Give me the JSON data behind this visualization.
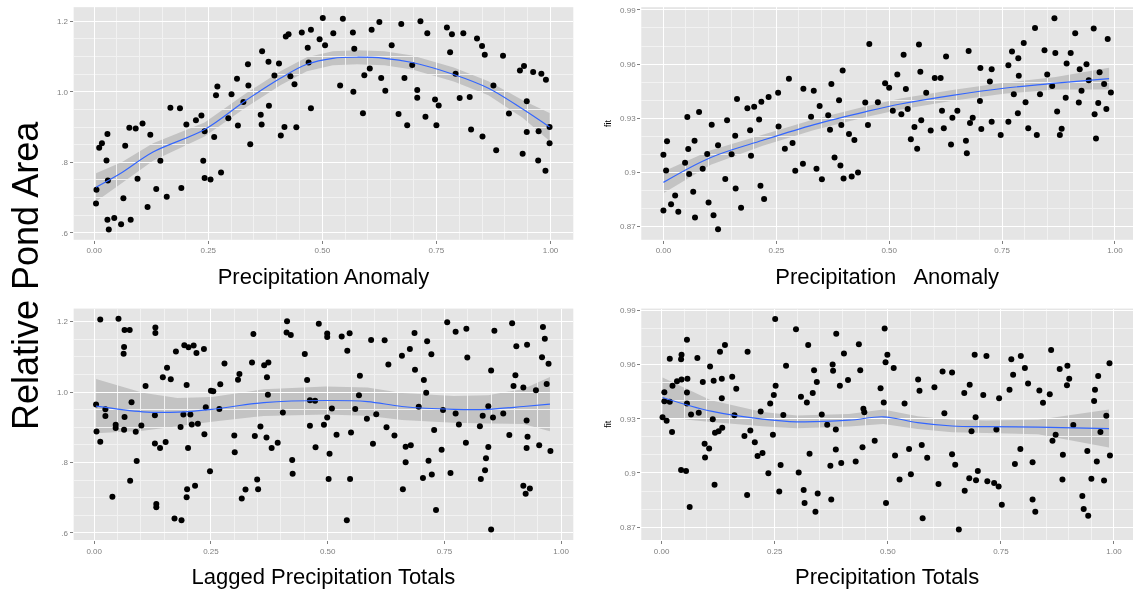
{
  "chart_data": [
    {
      "type": "scatter",
      "xlabel": "Precipitation Anomaly",
      "ylabel": "Relative Pond Area",
      "grid": true,
      "xlim": [
        -0.045,
        1.05
      ],
      "ylim": [
        0.58,
        1.24
      ],
      "xticks": [
        {
          "value": 0,
          "label": "0.00"
        },
        {
          "value": 0.25,
          "label": "0.25"
        },
        {
          "value": 0.5,
          "label": "0.50"
        },
        {
          "value": 0.75,
          "label": "0.75"
        },
        {
          "value": 1,
          "label": "1.00"
        }
      ],
      "yticks": [
        {
          "value": 0.6,
          "label": ".6"
        },
        {
          "value": 0.8,
          "label": ".8"
        },
        {
          "value": 1.0,
          "label": "1.0"
        },
        {
          "value": 1.2,
          "label": "1.2"
        }
      ],
      "series": [
        {
          "type": "scatter",
          "marker": "circle",
          "color": "#000000",
          "x": [
            0.004,
            0.005,
            0.011,
            0.017,
            0.029,
            0.027,
            0.029,
            0.032,
            0.03,
            0.044,
            0.059,
            0.064,
            0.068,
            0.077,
            0.091,
            0.106,
            0.095,
            0.08,
            0.117,
            0.123,
            0.136,
            0.145,
            0.167,
            0.159,
            0.188,
            0.191,
            0.202,
            0.223,
            0.235,
            0.239,
            0.242,
            0.242,
            0.255,
            0.263,
            0.267,
            0.27,
            0.278,
            0.294,
            0.301,
            0.313,
            0.315,
            0.327,
            0.337,
            0.338,
            0.342,
            0.365,
            0.367,
            0.368,
            0.382,
            0.383,
            0.395,
            0.405,
            0.409,
            0.417,
            0.42,
            0.426,
            0.43,
            0.439,
            0.443,
            0.455,
            0.468,
            0.47,
            0.475,
            0.475,
            0.494,
            0.501,
            0.506,
            0.524,
            0.539,
            0.545,
            0.567,
            0.568,
            0.57,
            0.589,
            0.592,
            0.604,
            0.608,
            0.625,
            0.629,
            0.638,
            0.652,
            0.667,
            0.673,
            0.68,
            0.686,
            0.697,
            0.708,
            0.708,
            0.715,
            0.726,
            0.73,
            0.747,
            0.75,
            0.755,
            0.773,
            0.78,
            0.784,
            0.792,
            0.801,
            0.809,
            0.823,
            0.826,
            0.839,
            0.85,
            0.851,
            0.856,
            0.875,
            0.881,
            0.896,
            0.909,
            0.933,
            0.942,
            0.939,
            0.948,
            0.948,
            0.962,
            0.973,
            0.974,
            0.98,
            0.989,
            0.99,
            0.998,
            0.998
          ],
          "values": [
            0.683,
            0.722,
            0.841,
            0.854,
            0.88,
            0.805,
            0.637,
            0.609,
            0.748,
            0.642,
            0.624,
            0.698,
            0.847,
            0.898,
            0.896,
            0.91,
            0.753,
            0.637,
            0.673,
            0.878,
            0.724,
            0.804,
            0.955,
            0.702,
            0.953,
            0.727,
            0.907,
            0.919,
            0.933,
            0.804,
            0.888,
            0.755,
            0.751,
            0.872,
            0.99,
            1.015,
            0.771,
            0.925,
            0.993,
            1.037,
            0.904,
            0.971,
            1.078,
            1.018,
            0.851,
            0.935,
            0.907,
            1.115,
            1.085,
            0.96,
            1.046,
            1.08,
            0.876,
            0.9,
            1.157,
            1.163,
            1.044,
            1.021,
            0.899,
            1.168,
            1.125,
            1.083,
            0.953,
            1.176,
            1.149,
            1.209,
            1.132,
            1.166,
            1.018,
            1.207,
            1.168,
            1.0,
            1.122,
            0.939,
            1.047,
            1.066,
            1.176,
            1.198,
            1.039,
            1.003,
            1.132,
            0.937,
            1.192,
            1.039,
            0.905,
            1.076,
            1.005,
            0.983,
            1.2,
            0.929,
            1.166,
            0.978,
            0.905,
            0.961,
            1.182,
            1.112,
            1.163,
            1.051,
            0.982,
            1.166,
            0.985,
            0.893,
            1.151,
            1.13,
            0.873,
            1.105,
            1.018,
            0.834,
            1.102,
            0.938,
            1.06,
            1.073,
            0.824,
            0.973,
            0.886,
            1.056,
            0.805,
            0.888,
            1.051,
            0.776,
            1.034,
            0.9,
            0.854
          ]
        },
        {
          "type": "line",
          "color": "#3366ff",
          "x": [
            0.004,
            0.061,
            0.129,
            0.242,
            0.333,
            0.409,
            0.466,
            0.523,
            0.576,
            0.636,
            0.697,
            0.788,
            0.864,
            0.939,
            0.998
          ],
          "values": [
            0.729,
            0.771,
            0.829,
            0.893,
            0.976,
            1.039,
            1.078,
            1.095,
            1.098,
            1.095,
            1.083,
            1.049,
            1.01,
            0.951,
            0.9
          ],
          "lower": [
            0.689,
            0.741,
            0.804,
            0.873,
            0.956,
            1.019,
            1.058,
            1.075,
            1.078,
            1.075,
            1.063,
            1.029,
            0.99,
            0.926,
            0.86
          ],
          "upper": [
            0.769,
            0.801,
            0.854,
            0.913,
            0.996,
            1.059,
            1.098,
            1.115,
            1.118,
            1.115,
            1.103,
            1.069,
            1.03,
            0.976,
            0.94
          ]
        }
      ]
    },
    {
      "type": "scatter",
      "xlabel": "Precipitation   Anomaly",
      "ylabel": "fit",
      "grid": true,
      "xlim": [
        -0.049,
        1.04
      ],
      "ylim": [
        0.8627,
        0.9915
      ],
      "xticks": [
        {
          "value": 0,
          "label": "0.00"
        },
        {
          "value": 0.25,
          "label": "0.25"
        },
        {
          "value": 0.5,
          "label": "0.50"
        },
        {
          "value": 0.75,
          "label": "0.75"
        },
        {
          "value": 1,
          "label": "1.00"
        }
      ],
      "yticks": [
        0.87,
        0.9,
        0.93,
        0.96,
        0.99
      ],
      "series": [
        {
          "type": "scatter",
          "marker": "circle",
          "color": "#000000",
          "x": [
            0,
            0,
            0.008,
            0.006,
            0.017,
            0.026,
            0.033,
            0.048,
            0.053,
            0.055,
            0.057,
            0.066,
            0.07,
            0.069,
            0.079,
            0.087,
            0.097,
            0.1,
            0.107,
            0.111,
            0.121,
            0.121,
            0.137,
            0.141,
            0.151,
            0.159,
            0.163,
            0.16,
            0.172,
            0.186,
            0.192,
            0.201,
            0.194,
            0.212,
            0.215,
            0.217,
            0.223,
            0.233,
            0.254,
            0.255,
            0.269,
            0.278,
            0.286,
            0.292,
            0.309,
            0.31,
            0.327,
            0.333,
            0.339,
            0.346,
            0.351,
            0.365,
            0.369,
            0.372,
            0.379,
            0.389,
            0.392,
            0.394,
            0.397,
            0.399,
            0.411,
            0.417,
            0.423,
            0.431,
            0.447,
            0.456,
            0.453,
            0.475,
            0.491,
            0.5,
            0.508,
            0.518,
            0.527,
            0.532,
            0.537,
            0.541,
            0.548,
            0.556,
            0.562,
            0.566,
            0.569,
            0.571,
            0.582,
            0.592,
            0.601,
            0.614,
            0.617,
            0.621,
            0.626,
            0.637,
            0.64,
            0.651,
            0.67,
            0.672,
            0.676,
            0.679,
            0.685,
            0.701,
            0.702,
            0.704,
            0.723,
            0.727,
            0.727,
            0.747,
            0.764,
            0.764,
            0.772,
            0.776,
            0.785,
            0.786,
            0.787,
            0.798,
            0.802,
            0.808,
            0.823,
            0.827,
            0.834,
            0.844,
            0.85,
            0.861,
            0.866,
            0.868,
            0.872,
            0.878,
            0.882,
            0.891,
            0.893,
            0.902,
            0.912,
            0.922,
            0.92,
            0.926,
            0.937,
            0.942,
            0.953,
            0.955,
            0.958,
            0.963,
            0.966,
            0.976,
            0.981,
            0.984,
            0.991
          ],
          "values": [
            0.8789,
            0.9098,
            0.9173,
            0.9011,
            0.8824,
            0.8872,
            0.8782,
            0.9054,
            0.9307,
            0.913,
            0.8991,
            0.8893,
            0.875,
            0.9175,
            0.9334,
            0.9021,
            0.9102,
            0.8834,
            0.9264,
            0.8763,
            0.8685,
            0.915,
            0.8964,
            0.9289,
            0.91,
            0.9203,
            0.9406,
            0.8911,
            0.8805,
            0.9356,
            0.9234,
            0.9364,
            0.9092,
            0.9293,
            0.8926,
            0.9391,
            0.8853,
            0.9418,
            0.9441,
            0.9255,
            0.9131,
            0.9519,
            0.9163,
            0.901,
            0.9048,
            0.9464,
            0.9309,
            0.9452,
            0.902,
            0.9368,
            0.8962,
            0.9316,
            0.9236,
            0.9489,
            0.9083,
            0.9399,
            0.9039,
            0.9262,
            0.9565,
            0.8967,
            0.9213,
            0.8978,
            0.918,
            0.9,
            0.9387,
            0.9711,
            0.9262,
            0.9389,
            0.9494,
            0.9469,
            0.9341,
            0.9542,
            0.9322,
            0.9651,
            0.9462,
            0.9351,
            0.9184,
            0.9251,
            0.9131,
            0.9709,
            0.9557,
            0.9289,
            0.9441,
            0.9232,
            0.9523,
            0.9523,
            0.9341,
            0.9245,
            0.9642,
            0.9154,
            0.9303,
            0.9341,
            0.9175,
            0.9106,
            0.9672,
            0.9274,
            0.9303,
            0.9395,
            0.9578,
            0.924,
            0.9504,
            0.9571,
            0.928,
            0.9207,
            0.9594,
            0.928,
            0.967,
            0.9433,
            0.9328,
            0.9632,
            0.9536,
            0.9717,
            0.9389,
            0.9245,
            0.98,
            0.9207,
            0.9433,
            0.9676,
            0.9542,
            0.9479,
            0.9854,
            0.9661,
            0.9337,
            0.9207,
            0.9242,
            0.9414,
            0.9603,
            0.9661,
            0.977,
            0.9571,
            0.9387,
            0.9452,
            0.9599,
            0.951,
            0.9797,
            0.9322,
            0.9188,
            0.9385,
            0.9555,
            0.949,
            0.9351,
            0.9739,
            0.9443
          ]
        },
        {
          "type": "line",
          "color": "#3366ff",
          "x": [
            0,
            0.105,
            0.22,
            0.334,
            0.449,
            0.525,
            0.64,
            0.754,
            0.869,
            0.987
          ],
          "values": [
            0.8945,
            0.9083,
            0.9178,
            0.9265,
            0.9337,
            0.9379,
            0.9427,
            0.9466,
            0.9494,
            0.9519
          ],
          "lower": [
            0.8885,
            0.9043,
            0.9148,
            0.9235,
            0.9307,
            0.9349,
            0.9397,
            0.9436,
            0.9459,
            0.9459
          ],
          "upper": [
            0.9005,
            0.9123,
            0.9208,
            0.9295,
            0.9367,
            0.9409,
            0.9457,
            0.9496,
            0.9529,
            0.9579
          ]
        }
      ]
    },
    {
      "type": "scatter",
      "xlabel": "Lagged Precipitation Totals",
      "grid": true,
      "xlim": [
        -0.044,
        1.026
      ],
      "ylim": [
        0.58,
        1.237
      ],
      "xticks": [
        {
          "value": 0,
          "label": "0.00"
        },
        {
          "value": 0.25,
          "label": "0.25"
        },
        {
          "value": 0.5,
          "label": "0.50"
        },
        {
          "value": 0.75,
          "label": "0.75"
        },
        {
          "value": 1,
          "label": "1.00"
        }
      ],
      "yticks": [
        {
          "value": 0.6,
          "label": ".6"
        },
        {
          "value": 0.8,
          "label": ".8"
        },
        {
          "value": 1.0,
          "label": "1.0"
        },
        {
          "value": 1.2,
          "label": "1.2"
        }
      ],
      "series": [
        {
          "type": "scatter",
          "marker": "circle",
          "color": "#000000",
          "x": [
            0.004,
            0.005,
            0.013,
            0.013,
            0.024,
            0.024,
            0.046,
            0.046,
            0.039,
            0.052,
            0.063,
            0.064,
            0.065,
            0.076,
            0.064,
            0.065,
            0.077,
            0.08,
            0.091,
            0.089,
            0.101,
            0.11,
            0.131,
            0.131,
            0.13,
            0.133,
            0.133,
            0.13,
            0.141,
            0.147,
            0.153,
            0.156,
            0.164,
            0.172,
            0.175,
            0.185,
            0.187,
            0.191,
            0.193,
            0.198,
            0.201,
            0.198,
            0.199,
            0.202,
            0.206,
            0.209,
            0.213,
            0.216,
            0.219,
            0.222,
            0.235,
            0.236,
            0.239,
            0.248,
            0.25,
            0.255,
            0.268,
            0.27,
            0.279,
            0.3,
            0.301,
            0.311,
            0.308,
            0.316,
            0.324,
            0.338,
            0.341,
            0.344,
            0.349,
            0.351,
            0.356,
            0.364,
            0.369,
            0.37,
            0.373,
            0.372,
            0.38,
            0.393,
            0.404,
            0.413,
            0.412,
            0.421,
            0.424,
            0.425,
            0.451,
            0.456,
            0.462,
            0.462,
            0.473,
            0.474,
            0.481,
            0.492,
            0.499,
            0.499,
            0.499,
            0.502,
            0.504,
            0.509,
            0.519,
            0.53,
            0.541,
            0.542,
            0.547,
            0.548,
            0.55,
            0.559,
            0.569,
            0.567,
            0.584,
            0.593,
            0.597,
            0.604,
            0.622,
            0.626,
            0.63,
            0.643,
            0.659,
            0.661,
            0.667,
            0.667,
            0.678,
            0.676,
            0.686,
            0.687,
            0.695,
            0.704,
            0.706,
            0.711,
            0.713,
            0.716,
            0.722,
            0.723,
            0.728,
            0.732,
            0.744,
            0.747,
            0.756,
            0.763,
            0.774,
            0.774,
            0.781,
            0.797,
            0.796,
            0.799,
            0.826,
            0.828,
            0.832,
            0.837,
            0.839,
            0.844,
            0.844,
            0.85,
            0.85,
            0.854,
            0.857,
            0.876,
            0.889,
            0.895,
            0.898,
            0.902,
            0.904,
            0.919,
            0.919,
            0.924,
            0.926,
            0.926,
            0.927,
            0.928,
            0.933,
            0.946,
            0.953,
            0.959,
            0.961,
            0.965,
            0.969,
            0.973,
            0.977
          ],
          "values": [
            0.965,
            0.888,
            1.206,
            0.859,
            0.951,
            0.932,
            0.907,
            0.898,
            0.703,
            1.208,
            1.109,
            1.128,
            1.176,
            1.176,
            0.893,
            0.929,
            0.748,
            0.971,
            0.804,
            0.887,
            0.905,
            1.017,
            1.183,
            1.168,
            0.934,
            0.682,
            0.673,
            0.854,
            0.841,
            1.042,
            0.858,
            1.069,
            1.036,
            0.641,
            1.115,
            0.901,
            0.636,
            0.936,
            1.133,
            1.02,
            0.841,
            0.701,
            0.724,
            1.127,
            0.936,
            0.908,
            1.132,
            0.734,
            1.111,
            0.91,
            1.122,
            0.88,
            0.957,
            0.775,
            1.004,
            1.002,
            0.952,
            1.022,
            1.081,
            0.877,
            0.829,
            1.051,
            1.035,
            0.698,
            0.723,
            1.084,
            1.165,
            0.875,
            0.752,
            0.724,
            0.902,
            1.076,
            0.871,
            1.042,
            1.084,
            0.992,
            0.841,
            0.856,
            0.942,
            1.201,
            1.169,
            1.162,
            0.807,
            0.768,
            1.108,
            1.034,
            0.977,
            0.904,
            0.975,
            0.843,
            1.194,
            0.907,
            1.166,
            1.156,
            0.928,
            0.753,
            0.825,
            0.953,
            0.879,
            1.158,
            0.636,
            1.117,
            1.167,
            0.753,
            0.885,
            0.952,
            1.046,
            0.991,
            0.924,
            1.148,
            0.853,
            0.937,
            1.147,
            0.9,
            1.078,
            0.877,
            1.103,
            0.724,
            0.801,
            0.845,
            0.849,
            1.122,
            1.168,
            1.063,
            0.958,
            0.756,
            1.034,
            0.998,
            1.144,
            0.805,
            1.107,
            0.766,
            0.892,
            0.665,
            0.836,
            0.949,
            1.198,
            0.77,
            1.171,
            0.939,
            0.908,
            1.18,
            0.856,
            1.098,
            0.903,
            0.753,
            0.933,
            0.778,
            0.812,
            0.844,
            0.96,
            1.061,
            0.61,
            0.928,
            1.174,
            0.939,
            0.878,
            1.195,
            1.017,
            1.048,
            1.13,
            1.013,
            0.734,
            0.711,
            0.841,
            0.919,
            1.134,
            0.873,
            0.726,
            1.005,
            0.849,
            1.099,
            1.185,
            1.151,
            1.023,
            1.08,
            0.833
          ]
        },
        {
          "type": "line",
          "color": "#3366ff",
          "x": [
            0.004,
            0.104,
            0.178,
            0.252,
            0.363,
            0.496,
            0.585,
            0.659,
            0.77,
            0.844,
            0.919,
            0.976
          ],
          "values": [
            0.96,
            0.944,
            0.943,
            0.951,
            0.97,
            0.976,
            0.973,
            0.959,
            0.951,
            0.951,
            0.959,
            0.966
          ],
          "lower": [
            0.883,
            0.89,
            0.903,
            0.916,
            0.932,
            0.936,
            0.933,
            0.921,
            0.913,
            0.911,
            0.909,
            0.889
          ],
          "upper": [
            1.037,
            0.998,
            0.983,
            0.986,
            1.008,
            1.016,
            1.013,
            0.997,
            0.989,
            0.991,
            1.009,
            1.043
          ]
        }
      ]
    },
    {
      "type": "scatter",
      "xlabel": "Precipitation Totals",
      "ylabel": "fit",
      "grid": true,
      "xlim": [
        -0.045,
        1.042
      ],
      "ylim": [
        0.8629,
        0.991
      ],
      "xticks": [
        {
          "value": 0,
          "label": "0.00"
        },
        {
          "value": 0.25,
          "label": "0.25"
        },
        {
          "value": 0.5,
          "label": "0.50"
        },
        {
          "value": 0.75,
          "label": "0.75"
        },
        {
          "value": 1,
          "label": "1.00"
        }
      ],
      "yticks": [
        0.87,
        0.9,
        0.93,
        0.96,
        0.99
      ],
      "series": [
        {
          "type": "scatter",
          "marker": "circle",
          "color": "#000000",
          "x": [
            0.002,
            0.006,
            0.006,
            0.011,
            0.018,
            0.018,
            0.023,
            0.024,
            0.034,
            0.043,
            0.044,
            0.043,
            0.044,
            0.054,
            0.056,
            0.057,
            0.056,
            0.056,
            0.062,
            0.065,
            0.079,
            0.082,
            0.091,
            0.095,
            0.096,
            0.105,
            0.107,
            0.113,
            0.115,
            0.117,
            0.118,
            0.126,
            0.129,
            0.133,
            0.133,
            0.134,
            0.14,
            0.156,
            0.161,
            0.165,
            0.183,
            0.189,
            0.19,
            0.196,
            0.206,
            0.212,
            0.219,
            0.223,
            0.236,
            0.24,
            0.246,
            0.248,
            0.251,
            0.252,
            0.26,
            0.263,
            0.269,
            0.275,
            0.297,
            0.303,
            0.308,
            0.314,
            0.316,
            0.321,
            0.324,
            0.327,
            0.334,
            0.337,
            0.34,
            0.343,
            0.345,
            0.354,
            0.366,
            0.373,
            0.375,
            0.378,
            0.379,
            0.385,
            0.385,
            0.386,
            0.394,
            0.397,
            0.403,
            0.412,
            0.429,
            0.436,
            0.439,
            0.444,
            0.446,
            0.448,
            0.471,
            0.484,
            0.491,
            0.493,
            0.495,
            0.496,
            0.499,
            0.513,
            0.516,
            0.526,
            0.537,
            0.547,
            0.551,
            0.567,
            0.57,
            0.575,
            0.577,
            0.587,
            0.603,
            0.612,
            0.621,
            0.625,
            0.642,
            0.642,
            0.649,
            0.657,
            0.669,
            0.67,
            0.68,
            0.681,
            0.685,
            0.692,
            0.694,
            0.695,
            0.699,
            0.711,
            0.718,
            0.72,
            0.735,
            0.74,
            0.745,
            0.746,
            0.752,
            0.769,
            0.773,
            0.777,
            0.781,
            0.793,
            0.794,
            0.803,
            0.81,
            0.82,
            0.82,
            0.826,
            0.835,
            0.843,
            0.858,
            0.861,
            0.864,
            0.871,
            0.88,
            0.886,
            0.887,
            0.896,
            0.897,
            0.901,
            0.91,
            0.93,
            0.933,
            0.941,
            0.943,
            0.95,
            0.956,
            0.958,
            0.962,
            0.965,
            0.97,
            0.978,
            0.983,
            0.99,
            0.991
          ],
          "values": [
            0.9308,
            0.9447,
            0.9397,
            0.9289,
            0.9632,
            0.9394,
            0.9227,
            0.9483,
            0.9508,
            0.9629,
            0.9655,
            0.9017,
            0.9518,
            0.9011,
            0.9738,
            0.9522,
            0.9384,
            0.9445,
            0.8811,
            0.9323,
            0.9636,
            0.9334,
            0.9504,
            0.9162,
            0.9086,
            0.9136,
            0.959,
            0.9298,
            0.9511,
            0.8935,
            0.9222,
            0.9231,
            0.9671,
            0.9413,
            0.9522,
            0.925,
            0.9709,
            0.9533,
            0.9319,
            0.9466,
            0.9204,
            0.8878,
            0.9671,
            0.9235,
            0.917,
            0.9094,
            0.934,
            0.9111,
            0.8998,
            0.9384,
            0.9212,
            0.9432,
            0.9852,
            0.9483,
            0.8897,
            0.9044,
            0.9321,
            0.9594,
            0.9795,
            0.9002,
            0.9422,
            0.8906,
            0.8834,
            0.939,
            0.9709,
            0.9107,
            0.9442,
            0.9569,
            0.8786,
            0.9504,
            0.8887,
            0.9323,
            0.9267,
            0.904,
            0.8853,
            0.96,
            0.9566,
            0.9241,
            0.913,
            0.977,
            0.9483,
            0.9055,
            0.9661,
            0.9514,
            0.9063,
            0.9713,
            0.9569,
            0.9142,
            0.9355,
            0.9336,
            0.9178,
            0.9469,
            0.939,
            0.9799,
            0.9613,
            0.8834,
            0.9655,
            0.9581,
            0.9097,
            0.8964,
            0.9384,
            0.9132,
            0.8993,
            0.9518,
            0.9455,
            0.9155,
            0.875,
            0.9084,
            0.9474,
            0.8939,
            0.9562,
            0.9331,
            0.9556,
            0.9103,
            0.9046,
            0.8687,
            0.9442,
            0.8902,
            0.8971,
            0.9489,
            0.9231,
            0.9655,
            0.9308,
            0.896,
            0.9011,
            0.9432,
            0.9648,
            0.8954,
            0.8945,
            0.9241,
            0.8925,
            0.9413,
            0.8824,
            0.946,
            0.9629,
            0.9543,
            0.905,
            0.9132,
            0.9648,
            0.9581,
            0.9495,
            0.9059,
            0.8853,
            0.8786,
            0.9457,
            0.9388,
            0.9436,
            0.968,
            0.9178,
            0.9212,
            0.9575,
            0.8964,
            0.9101,
            0.9485,
            0.9594,
            0.9522,
            0.9266,
            0.8872,
            0.8801,
            0.9122,
            0.8763,
            0.8968,
            0.9399,
            0.946,
            0.9063,
            0.9537,
            0.9227,
            0.8958,
            0.9317,
            0.9608,
            0.9097
          ]
        },
        {
          "type": "line",
          "color": "#3366ff",
          "x": [
            0.002,
            0.109,
            0.223,
            0.299,
            0.414,
            0.49,
            0.566,
            0.642,
            0.718,
            0.832,
            0.989
          ],
          "values": [
            0.9418,
            0.9342,
            0.9298,
            0.9283,
            0.9292,
            0.9311,
            0.9279,
            0.926,
            0.9256,
            0.9254,
            0.9246
          ],
          "lower": [
            0.9308,
            0.9282,
            0.9258,
            0.9248,
            0.9257,
            0.9271,
            0.9244,
            0.9225,
            0.9221,
            0.9214,
            0.9141
          ],
          "upper": [
            0.9528,
            0.9402,
            0.9338,
            0.9318,
            0.9327,
            0.9351,
            0.9314,
            0.9295,
            0.9291,
            0.9294,
            0.9351
          ]
        }
      ]
    }
  ]
}
